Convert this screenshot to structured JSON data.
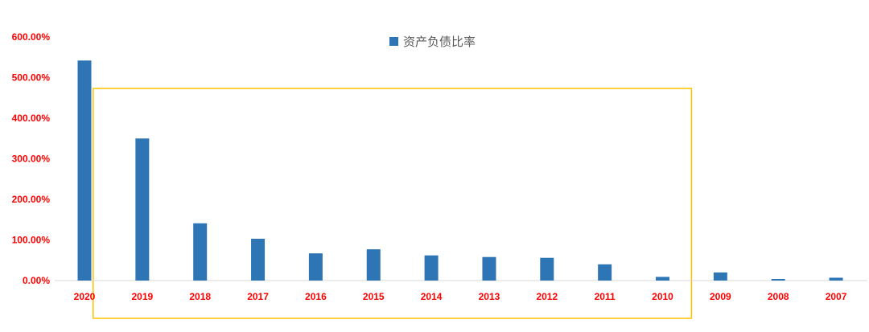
{
  "chart_data": {
    "type": "bar",
    "categories": [
      "2020",
      "2019",
      "2018",
      "2017",
      "2016",
      "2015",
      "2014",
      "2013",
      "2012",
      "2011",
      "2010",
      "2009",
      "2008",
      "2007"
    ],
    "series": [
      {
        "name": "资产负债比率",
        "color": "#2E75B6",
        "values": [
          542,
          350,
          141,
          103,
          67,
          77,
          62,
          58,
          56,
          40,
          9,
          20,
          4,
          7
        ]
      }
    ],
    "ylim": [
      0,
      600
    ],
    "yticks": [
      "0.00%",
      "100.00%",
      "200.00%",
      "300.00%",
      "400.00%",
      "500.00%",
      "600.00%"
    ],
    "legend_position": "top-center",
    "grid": false,
    "highlight": {
      "from": "2019",
      "to": "2010",
      "color": "#FFC000"
    },
    "tick_label_color": "#FF0000"
  }
}
